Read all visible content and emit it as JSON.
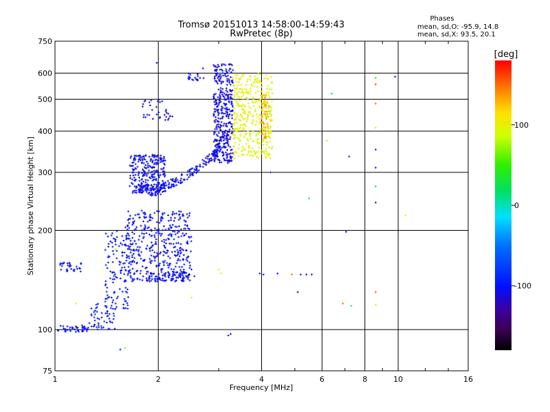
{
  "title": {
    "line1": "Tromsø 20151013 14:58:00-14:59:43",
    "line2": "RwPretec (8p)"
  },
  "stats": {
    "heading": "Phases",
    "line_o": "mean, sd,O: -95.9, 14.8",
    "line_x": "mean, sd,X: 93.5, 20.1"
  },
  "colorbar": {
    "label": "[deg]",
    "ticks": [
      {
        "value": 100,
        "label": "100"
      },
      {
        "value": 0,
        "label": "0"
      },
      {
        "value": -100,
        "label": "-100"
      }
    ],
    "range": [
      -180,
      180
    ]
  },
  "chart_data": {
    "type": "scatter",
    "xlabel": "Frequency [MHz]",
    "ylabel": "Stationary phase Virtual Height [km]",
    "xscale": "log",
    "yscale": "log",
    "xlim": [
      1,
      16
    ],
    "ylim": [
      75,
      750
    ],
    "xticks": [
      {
        "value": 1,
        "label": "1"
      },
      {
        "value": 2,
        "label": "2"
      },
      {
        "value": 4,
        "label": "4"
      },
      {
        "value": 6,
        "label": "6"
      },
      {
        "value": 8,
        "label": "8"
      },
      {
        "value": 10,
        "label": "10"
      },
      {
        "value": 16,
        "label": "16"
      }
    ],
    "yticks": [
      {
        "value": 75,
        "label": "75"
      },
      {
        "value": 100,
        "label": "100"
      },
      {
        "value": 200,
        "label": "200"
      },
      {
        "value": 300,
        "label": "300"
      },
      {
        "value": 400,
        "label": "400"
      },
      {
        "value": 500,
        "label": "500"
      },
      {
        "value": 600,
        "label": "600"
      },
      {
        "value": 750,
        "label": "750"
      }
    ],
    "grid": true,
    "color_quantity": "phase [deg]",
    "clusters": [
      {
        "f_min": 1.02,
        "f_max": 1.25,
        "h_min": 98,
        "h_max": 103,
        "phase": -105,
        "count": 45
      },
      {
        "f_min": 1.25,
        "f_max": 1.5,
        "h_min": 100,
        "h_max": 120,
        "phase": -100,
        "count": 55
      },
      {
        "f_min": 1.4,
        "f_max": 1.65,
        "h_min": 115,
        "h_max": 200,
        "phase": -100,
        "count": 120
      },
      {
        "f_min": 1.6,
        "f_max": 2.5,
        "h_min": 140,
        "h_max": 230,
        "phase": -102,
        "count": 420
      },
      {
        "f_min": 1.85,
        "f_max": 2.55,
        "h_min": 140,
        "h_max": 150,
        "phase": -105,
        "count": 80
      },
      {
        "f_min": 1.03,
        "f_max": 1.2,
        "h_min": 150,
        "h_max": 160,
        "phase": -105,
        "count": 30
      },
      {
        "f_min": 1.65,
        "f_max": 2.1,
        "h_min": 255,
        "h_max": 340,
        "phase": -105,
        "count": 260
      },
      {
        "f_min": 1.8,
        "f_max": 2.2,
        "h_min": 430,
        "h_max": 500,
        "phase": -108,
        "count": 35
      },
      {
        "f_min": 2.4,
        "f_max": 2.75,
        "h_min": 570,
        "h_max": 600,
        "phase": -105,
        "count": 20
      },
      {
        "f_min": 2.9,
        "f_max": 3.3,
        "h_min": 320,
        "h_max": 640,
        "phase": -110,
        "count": 380
      },
      {
        "f_min": 3.3,
        "f_max": 4.3,
        "h_min": 330,
        "h_max": 600,
        "phase": 95,
        "count": 380
      },
      {
        "f_min": 4.0,
        "f_max": 4.2,
        "h_min": 380,
        "h_max": 520,
        "phase": 130,
        "count": 60
      }
    ],
    "traces": [
      {
        "f_start": 1.7,
        "f_end": 3.05,
        "h_start": 265,
        "h_end": 360,
        "phase": -105,
        "count": 200
      }
    ],
    "points": [
      {
        "f": 1.98,
        "h": 645,
        "phase": -100
      },
      {
        "f": 2.9,
        "h": 635,
        "phase": -105
      },
      {
        "f": 2.7,
        "h": 620,
        "phase": -100
      },
      {
        "f": 3.1,
        "h": 610,
        "phase": 40
      },
      {
        "f": 4.25,
        "h": 300,
        "phase": -100
      },
      {
        "f": 3.2,
        "h": 96,
        "phase": -110
      },
      {
        "f": 3.25,
        "h": 97,
        "phase": -110
      },
      {
        "f": 1.6,
        "h": 88,
        "phase": 70
      },
      {
        "f": 1.55,
        "h": 87,
        "phase": -100
      },
      {
        "f": 3.0,
        "h": 152,
        "phase": 80
      },
      {
        "f": 3.05,
        "h": 148,
        "phase": 90
      },
      {
        "f": 3.95,
        "h": 148,
        "phase": -100
      },
      {
        "f": 4.05,
        "h": 147,
        "phase": -100
      },
      {
        "f": 4.45,
        "h": 148,
        "phase": -100
      },
      {
        "f": 4.9,
        "h": 147,
        "phase": 150
      },
      {
        "f": 5.2,
        "h": 147,
        "phase": -100
      },
      {
        "f": 5.4,
        "h": 147,
        "phase": -100
      },
      {
        "f": 5.6,
        "h": 147,
        "phase": -120
      },
      {
        "f": 5.1,
        "h": 130,
        "phase": -100
      },
      {
        "f": 5.5,
        "h": 250,
        "phase": 30
      },
      {
        "f": 6.4,
        "h": 520,
        "phase": 20
      },
      {
        "f": 7.05,
        "h": 198,
        "phase": -100
      },
      {
        "f": 7.2,
        "h": 335,
        "phase": -100
      },
      {
        "f": 6.9,
        "h": 120,
        "phase": 150
      },
      {
        "f": 7.3,
        "h": 118,
        "phase": 0
      },
      {
        "f": 8.6,
        "h": 580,
        "phase": 40
      },
      {
        "f": 8.6,
        "h": 555,
        "phase": 160
      },
      {
        "f": 8.6,
        "h": 485,
        "phase": 150
      },
      {
        "f": 8.6,
        "h": 410,
        "phase": 100
      },
      {
        "f": 8.6,
        "h": 352,
        "phase": -105
      },
      {
        "f": 8.6,
        "h": 310,
        "phase": -100
      },
      {
        "f": 8.6,
        "h": 272,
        "phase": 20
      },
      {
        "f": 8.6,
        "h": 243,
        "phase": -130
      },
      {
        "f": 8.6,
        "h": 130,
        "phase": 150
      },
      {
        "f": 8.6,
        "h": 119,
        "phase": 100
      },
      {
        "f": 9.8,
        "h": 585,
        "phase": -120
      },
      {
        "f": 10.5,
        "h": 222,
        "phase": 100
      },
      {
        "f": 6.2,
        "h": 375,
        "phase": 110
      },
      {
        "f": 1.5,
        "h": 175,
        "phase": 80
      },
      {
        "f": 2.5,
        "h": 125,
        "phase": 90
      },
      {
        "f": 1.15,
        "h": 120,
        "phase": 85
      }
    ]
  }
}
